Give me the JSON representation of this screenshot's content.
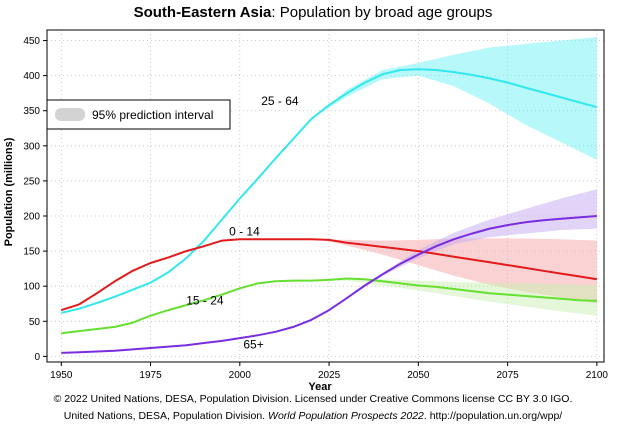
{
  "chart_data": {
    "type": "line",
    "title_bold": "South-Eastern Asia",
    "title_rest": ": Population by broad age groups",
    "xlabel": "Year",
    "ylabel": "Population (millions)",
    "xlim": [
      1946,
      2102
    ],
    "ylim": [
      -8,
      465
    ],
    "xticks": [
      1950,
      1975,
      2000,
      2025,
      2050,
      2075,
      2100
    ],
    "yticks": [
      0,
      50,
      100,
      150,
      200,
      250,
      300,
      350,
      400,
      450
    ],
    "legend": {
      "label": "95% prediction interval",
      "position": "top-left"
    },
    "projection_start": 2022,
    "series": [
      {
        "name": "25 - 64",
        "color": "#32e8ee",
        "band_color": "#6ff3f6",
        "x": [
          1950,
          1955,
          1960,
          1965,
          1970,
          1975,
          1980,
          1985,
          1990,
          1995,
          2000,
          2005,
          2010,
          2015,
          2020,
          2025,
          2030,
          2035,
          2040,
          2045,
          2050,
          2055,
          2060,
          2065,
          2070,
          2075,
          2080,
          2085,
          2090,
          2095,
          2100
        ],
        "values": [
          62,
          68,
          76,
          85,
          95,
          105,
          120,
          140,
          165,
          195,
          225,
          253,
          282,
          310,
          338,
          358,
          375,
          390,
          402,
          408,
          409,
          408,
          405,
          401,
          396,
          390,
          383,
          376,
          369,
          362,
          355
        ],
        "band_x": [
          2022,
          2030,
          2040,
          2050,
          2060,
          2070,
          2080,
          2090,
          2100
        ],
        "band_lower": [
          345,
          370,
          395,
          400,
          385,
          360,
          330,
          305,
          280
        ],
        "band_upper": [
          345,
          380,
          408,
          418,
          430,
          440,
          445,
          450,
          455
        ]
      },
      {
        "name": "0 - 14",
        "color": "#e31a1c",
        "band_color": "#f8a5a8",
        "x": [
          1950,
          1955,
          1960,
          1965,
          1970,
          1975,
          1980,
          1985,
          1990,
          1995,
          2000,
          2005,
          2010,
          2015,
          2020,
          2025,
          2030,
          2035,
          2040,
          2045,
          2050,
          2055,
          2060,
          2065,
          2070,
          2075,
          2080,
          2085,
          2090,
          2095,
          2100
        ],
        "values": [
          66,
          74,
          90,
          107,
          122,
          133,
          141,
          150,
          157,
          165,
          167,
          167,
          167,
          167,
          167,
          166,
          162,
          159,
          156,
          153,
          150,
          146,
          142,
          138,
          134,
          130,
          126,
          122,
          118,
          114,
          110
        ],
        "band_x": [
          2022,
          2030,
          2040,
          2050,
          2060,
          2070,
          2080,
          2090,
          2100
        ],
        "band_lower": [
          167,
          158,
          145,
          130,
          115,
          102,
          92,
          84,
          75
        ],
        "band_upper": [
          167,
          166,
          165,
          166,
          168,
          168,
          168,
          167,
          165
        ]
      },
      {
        "name": "15 - 24",
        "color": "#66e030",
        "band_color": "#c9f0b2",
        "x": [
          1950,
          1955,
          1960,
          1965,
          1970,
          1975,
          1980,
          1985,
          1990,
          1995,
          2000,
          2005,
          2010,
          2015,
          2020,
          2025,
          2030,
          2035,
          2040,
          2045,
          2050,
          2055,
          2060,
          2065,
          2070,
          2075,
          2080,
          2085,
          2090,
          2095,
          2100
        ],
        "values": [
          33,
          36,
          39,
          42,
          48,
          58,
          66,
          73,
          80,
          88,
          97,
          104,
          107,
          108,
          108,
          109,
          111,
          110,
          107,
          104,
          101,
          99,
          96,
          93,
          90,
          88,
          86,
          84,
          82,
          80,
          79
        ],
        "band_x": [
          2022,
          2030,
          2040,
          2050,
          2060,
          2070,
          2080,
          2090,
          2100
        ],
        "band_lower": [
          108,
          108,
          101,
          94,
          86,
          78,
          71,
          64,
          58
        ],
        "band_upper": [
          108,
          112,
          110,
          108,
          106,
          105,
          104,
          103,
          101
        ]
      },
      {
        "name": "65+",
        "color": "#7a2de0",
        "band_color": "#c5a7f2",
        "x": [
          1950,
          1955,
          1960,
          1965,
          1970,
          1975,
          1980,
          1985,
          1990,
          1995,
          2000,
          2005,
          2010,
          2015,
          2020,
          2025,
          2030,
          2035,
          2040,
          2045,
          2050,
          2055,
          2060,
          2065,
          2070,
          2075,
          2080,
          2085,
          2090,
          2095,
          2100
        ],
        "values": [
          5,
          6,
          7,
          8,
          10,
          12,
          14,
          16,
          19,
          22,
          26,
          30,
          35,
          42,
          52,
          66,
          83,
          101,
          117,
          132,
          145,
          157,
          167,
          175,
          182,
          187,
          191,
          194,
          196,
          198,
          200
        ],
        "band_x": [
          2022,
          2030,
          2040,
          2050,
          2060,
          2070,
          2080,
          2090,
          2100
        ],
        "band_lower": [
          57,
          82,
          115,
          140,
          160,
          170,
          175,
          180,
          182
        ],
        "band_upper": [
          57,
          84,
          119,
          152,
          176,
          195,
          210,
          225,
          238
        ]
      }
    ]
  },
  "credits": {
    "line1": "© 2022 United Nations, DESA, Population Division. Licensed under Creative Commons license CC BY 3.0 IGO.",
    "line2_start": "United Nations, DESA, Population Division. ",
    "line2_italic": "World Population Prospects 2022",
    "line2_end": ". http://population.un.org/wpp/"
  }
}
